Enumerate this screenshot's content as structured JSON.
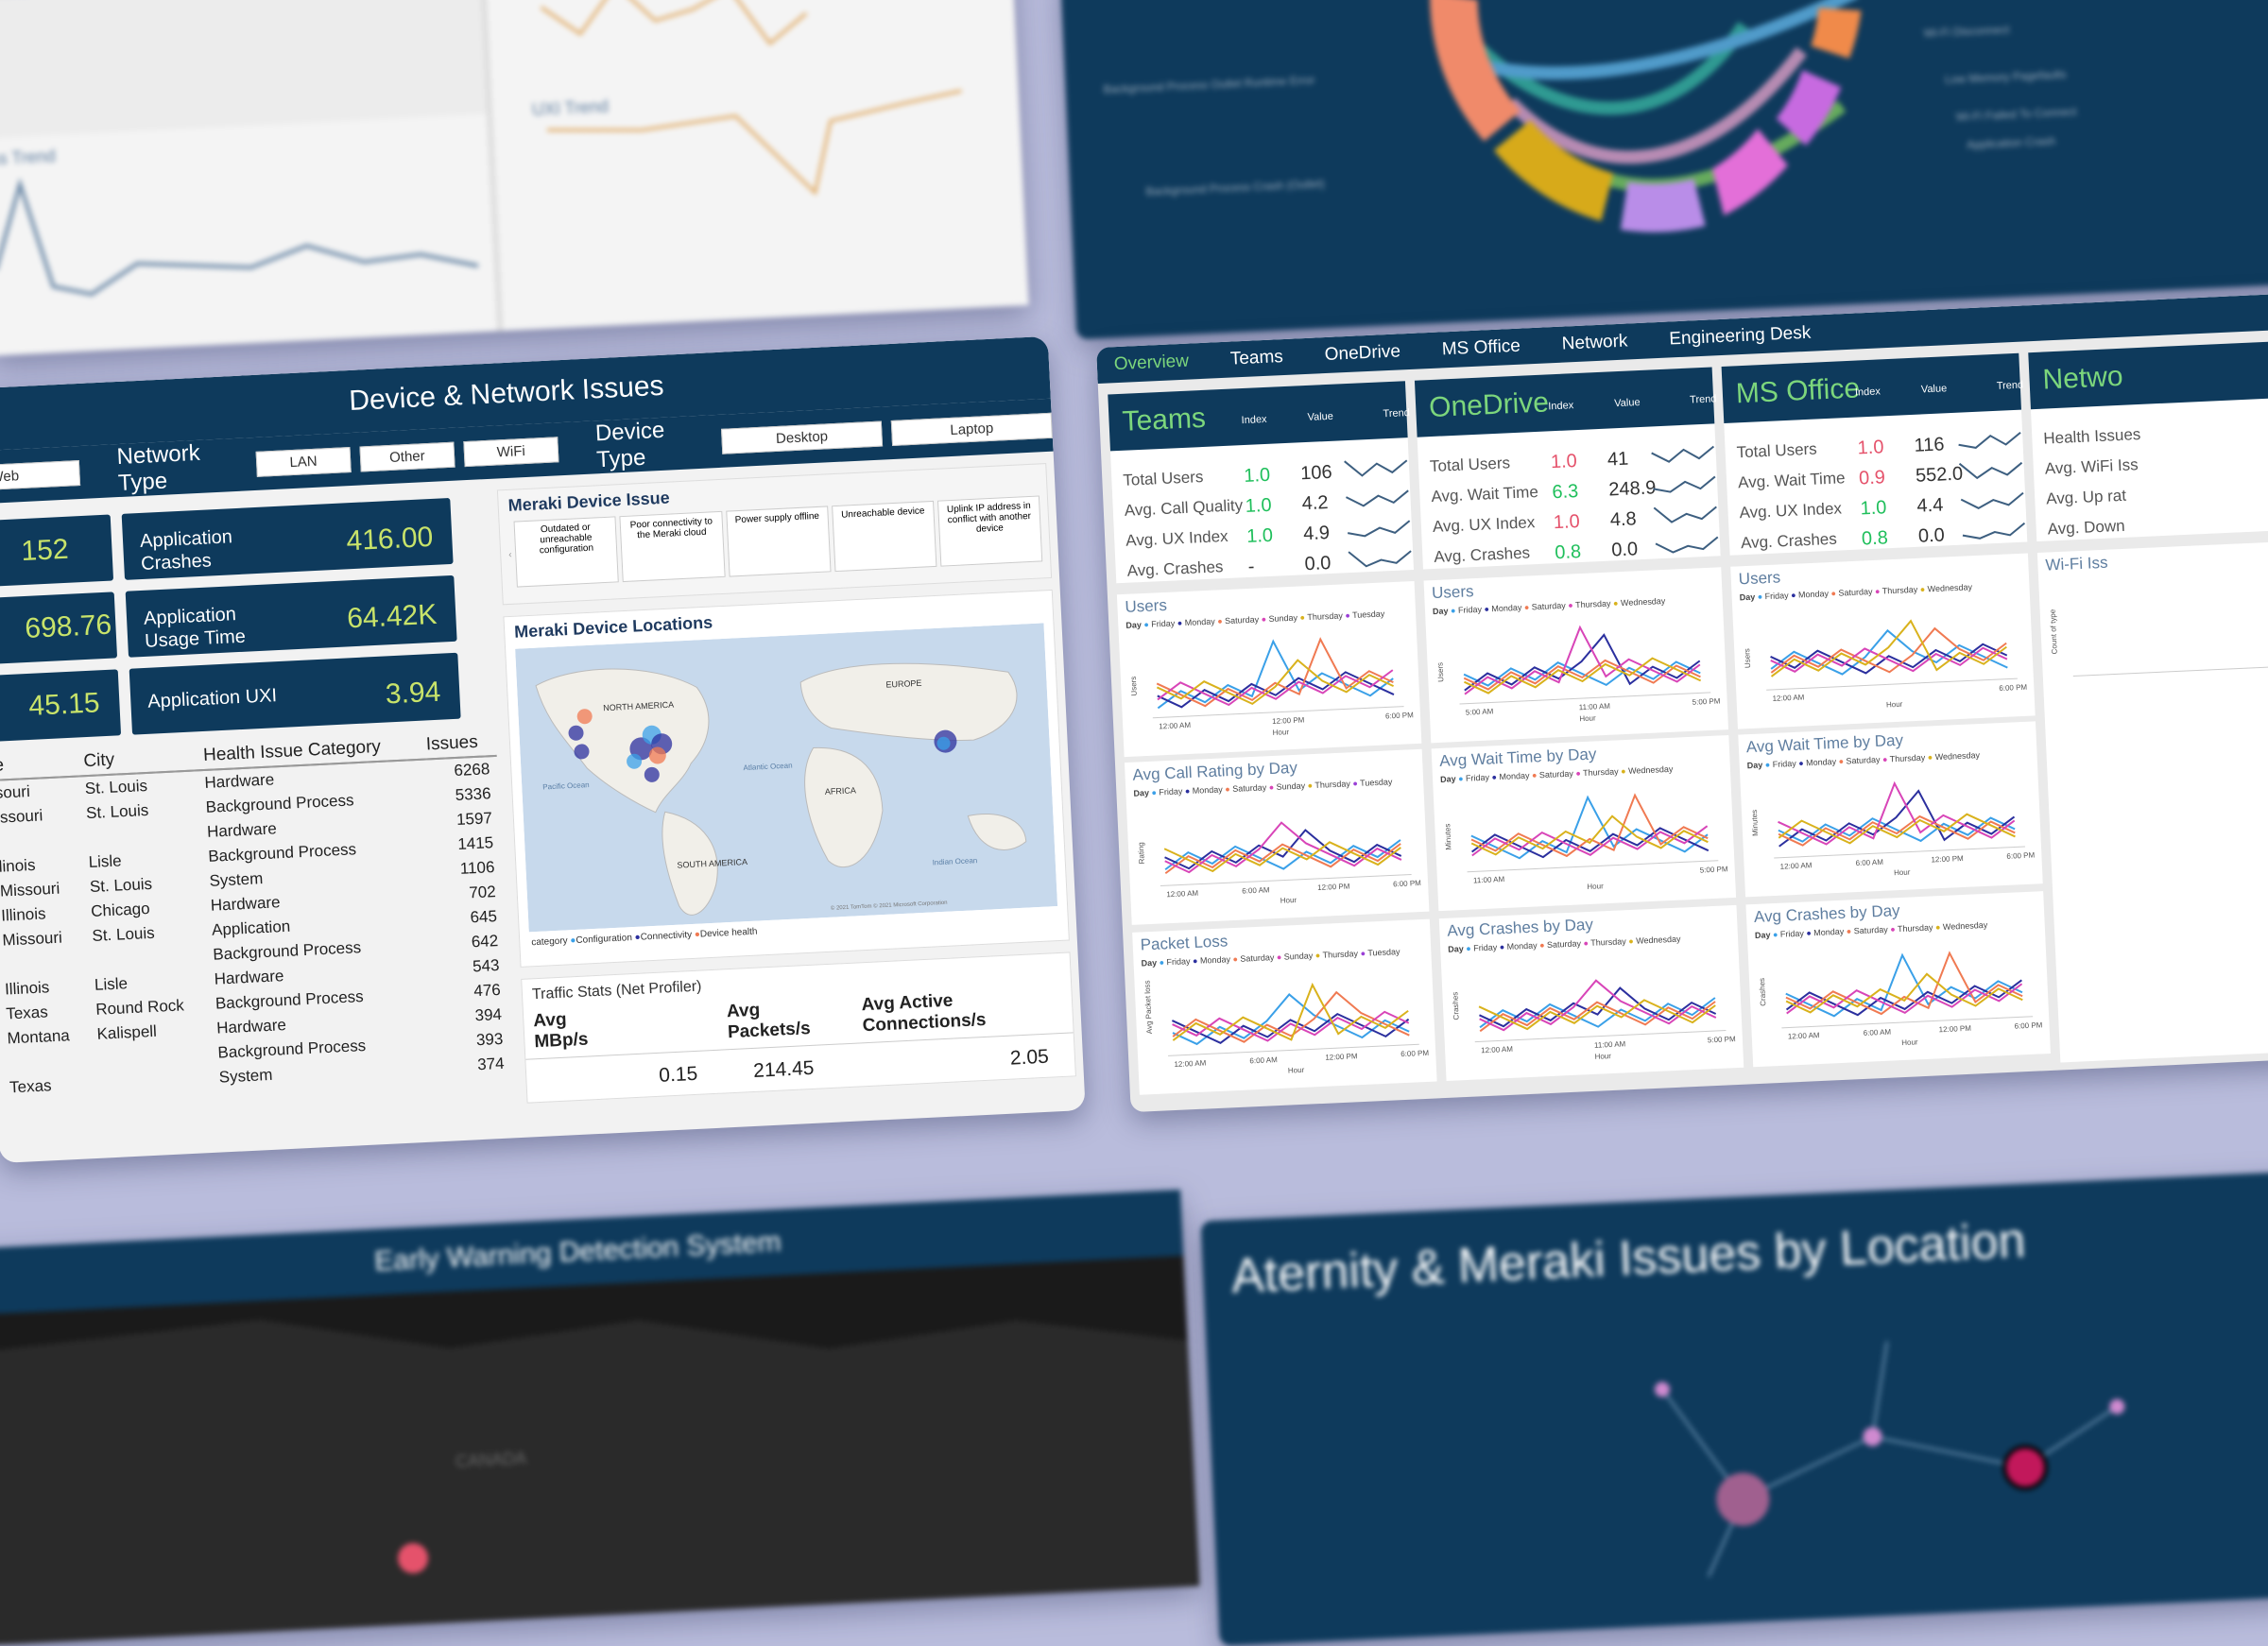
{
  "colors": {
    "navy": "#0e3a5c",
    "accent_green": "#7cd67c",
    "kpi_value": "#c8e36a",
    "bad": "#e5526b",
    "good": "#1fbf5b"
  },
  "bg_top_left": {
    "title_trend": "ss Trend",
    "title_uxi": "UXI Trend"
  },
  "bg_top_right": {
    "labels": [
      "Background Process Outlet Runtime Error",
      "Background Process Crash (Outlet)",
      "Wi-Fi Disconnect",
      "Low Memory Pagefaults",
      "Wi-Fi Failed To Connect",
      "Application Crash"
    ]
  },
  "device_network": {
    "title": "Device & Network Issues",
    "filters": {
      "web_chip": "Web",
      "network_type_label": "Network Type",
      "network_types": [
        "LAN",
        "Other",
        "WiFi"
      ],
      "device_type_label": "Device Type",
      "device_types": [
        "Desktop",
        "Laptop"
      ]
    },
    "kpis_left": [
      "152",
      "698.76",
      "45.15"
    ],
    "kpis": [
      {
        "label": "Application Crashes",
        "value": "416.00"
      },
      {
        "label": "Application Usage Time",
        "value": "64.42K"
      },
      {
        "label": "Application UXI",
        "value": "3.94"
      }
    ],
    "table": {
      "headers": [
        "e",
        "City",
        "Health Issue Category",
        "Issues"
      ],
      "rows": [
        [
          "souri",
          "St. Louis",
          "Hardware",
          "6268"
        ],
        [
          "issouri",
          "St. Louis",
          "Background Process",
          "5336"
        ],
        [
          "",
          "",
          "Hardware",
          "1597"
        ],
        [
          "linois",
          "Lisle",
          "Background Process",
          "1415"
        ],
        [
          "Missouri",
          "St. Louis",
          "System",
          "1106"
        ],
        [
          "Illinois",
          "Chicago",
          "Hardware",
          "702"
        ],
        [
          "Missouri",
          "St. Louis",
          "Application",
          "645"
        ],
        [
          "",
          "",
          "Background Process",
          "642"
        ],
        [
          "Illinois",
          "Lisle",
          "Hardware",
          "543"
        ],
        [
          "Texas",
          "Round Rock",
          "Background Process",
          "476"
        ],
        [
          "Montana",
          "Kalispell",
          "Hardware",
          "394"
        ],
        [
          "",
          "",
          "Background Process",
          "393"
        ],
        [
          "Texas",
          "",
          "System",
          "374"
        ]
      ]
    },
    "meraki_issue": {
      "title": "Meraki Device Issue",
      "items": [
        "Outdated or unreachable configuration",
        "Poor connectivity to the Meraki cloud",
        "Power supply offline",
        "Unreachable device",
        "Uplink IP address in conflict with another device"
      ]
    },
    "map": {
      "title": "Meraki Device Locations",
      "labels": [
        "NORTH AMERICA",
        "EUROPE",
        "AFRICA",
        "SOUTH AMERICA",
        "Pacific Ocean",
        "Atlantic Ocean",
        "Indian Ocean"
      ],
      "credit": "© 2021 TomTom © 2021 Microsoft Corporation",
      "legend_label": "category",
      "legend": [
        {
          "name": "Configuration",
          "color": "#3aa0e8"
        },
        {
          "name": "Connectivity",
          "color": "#2b2f9e"
        },
        {
          "name": "Device health",
          "color": "#f07a52"
        }
      ]
    },
    "traffic": {
      "title": "Traffic Stats (Net Profiler)",
      "headers": [
        "Avg MBp/s",
        "Avg Packets/s",
        "Avg Active Connections/s"
      ],
      "values": [
        "0.15",
        "214.45",
        "2.05"
      ]
    }
  },
  "overview": {
    "tabs": [
      "Overview",
      "Teams",
      "OneDrive",
      "MS Office",
      "Network",
      "Engineering Desk"
    ],
    "col_headers": [
      "Index",
      "Value",
      "Trend"
    ],
    "sections": [
      {
        "title": "Teams",
        "rows": [
          {
            "label": "Total Users",
            "index": "1.0",
            "value": "106",
            "status": "good"
          },
          {
            "label": "Avg. Call Quality",
            "index": "1.0",
            "value": "4.2",
            "status": "good"
          },
          {
            "label": "Avg. UX Index",
            "index": "1.0",
            "value": "4.9",
            "status": "good"
          },
          {
            "label": "Avg. Crashes",
            "index": "-",
            "value": "0.0",
            "status": "none"
          }
        ]
      },
      {
        "title": "OneDrive",
        "rows": [
          {
            "label": "Total Users",
            "index": "1.0",
            "value": "41",
            "status": "bad"
          },
          {
            "label": "Avg. Wait Time",
            "index": "6.3",
            "value": "248.9",
            "status": "good"
          },
          {
            "label": "Avg. UX Index",
            "index": "1.0",
            "value": "4.8",
            "status": "bad"
          },
          {
            "label": "Avg. Crashes",
            "index": "0.8",
            "value": "0.0",
            "status": "good"
          }
        ]
      },
      {
        "title": "MS Office",
        "rows": [
          {
            "label": "Total Users",
            "index": "1.0",
            "value": "116",
            "status": "bad"
          },
          {
            "label": "Avg. Wait Time",
            "index": "0.9",
            "value": "552.0",
            "status": "bad"
          },
          {
            "label": "Avg. UX Index",
            "index": "1.0",
            "value": "4.4",
            "status": "good"
          },
          {
            "label": "Avg. Crashes",
            "index": "0.8",
            "value": "0.0",
            "status": "good"
          }
        ]
      },
      {
        "title": "Netwo",
        "rows": [
          {
            "label": "Health Issues",
            "index": "",
            "value": "",
            "status": "none"
          },
          {
            "label": "Avg. WiFi Iss",
            "index": "",
            "value": "",
            "status": "none"
          },
          {
            "label": "Avg. Up rat",
            "index": "",
            "value": "",
            "status": "none"
          },
          {
            "label": "Avg. Down",
            "index": "",
            "value": "",
            "status": "none"
          }
        ]
      }
    ],
    "day_label": "Day",
    "days_a": [
      "Friday",
      "Monday",
      "Saturday",
      "Sunday",
      "Thursday",
      "Tuesday"
    ],
    "days_b": [
      "Friday",
      "Monday",
      "Saturday",
      "Thursday",
      "Wednesday"
    ],
    "day_colors": [
      "#3aa0e8",
      "#2b2f9e",
      "#f07a52",
      "#d845b8",
      "#d9b21c",
      "#9a3fd6"
    ],
    "hour_label": "Hour",
    "charts": [
      {
        "title": "Users",
        "ylabel": "Users",
        "ticks": [
          "12:00 AM",
          "12:00 PM",
          "6:00 PM"
        ]
      },
      {
        "title": "Avg Call Rating by Day",
        "ylabel": "Rating",
        "ticks": [
          "12:00 AM",
          "6:00 AM",
          "12:00 PM",
          "6:00 PM"
        ]
      },
      {
        "title": "Packet Loss",
        "ylabel": "Avg Packet loss",
        "ticks": [
          "12:00 AM",
          "6:00 AM",
          "12:00 PM",
          "6:00 PM"
        ]
      },
      {
        "title": "Users",
        "ylabel": "Users",
        "ticks": [
          "5:00 AM",
          "11:00 AM",
          "5:00 PM"
        ]
      },
      {
        "title": "Avg Wait Time by Day",
        "ylabel": "Minutes",
        "ticks": [
          "11:00 AM",
          "5:00 PM"
        ]
      },
      {
        "title": "Avg Crashes by Day",
        "ylabel": "Crashes",
        "ticks": [
          "12:00 AM",
          "11:00 AM",
          "5:00 PM"
        ]
      },
      {
        "title": "Users",
        "ylabel": "Users",
        "ticks": [
          "12:00 AM",
          "6:00 PM"
        ]
      },
      {
        "title": "Avg Wait Time by Day",
        "ylabel": "Minutes",
        "ticks": [
          "12:00 AM",
          "6:00 AM",
          "12:00 PM",
          "6:00 PM"
        ]
      },
      {
        "title": "Avg Crashes by Day",
        "ylabel": "Crashes",
        "ticks": [
          "12:00 AM",
          "6:00 AM",
          "12:00 PM",
          "6:00 PM"
        ]
      },
      {
        "title": "Wi-Fi Iss",
        "ylabel": "Count of type",
        "ticks": []
      }
    ]
  },
  "bg_bottom_left": {
    "title": "Early Warning Detection System",
    "map_label": "CANADA"
  },
  "bg_bottom_right": {
    "title": "Aternity & Meraki Issues by Location"
  }
}
